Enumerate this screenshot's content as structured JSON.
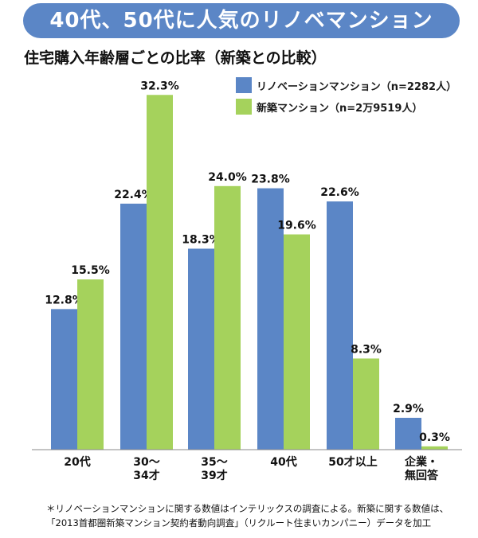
{
  "header": {
    "title": "40代、50代に人気のリノベマンション",
    "subtitle": "住宅購入年齢層ごとの比率（新築との比較）"
  },
  "legend": [
    {
      "label": "リノベーションマンション（n=2282人）",
      "color": "#5b86c6"
    },
    {
      "label": "新築マンション（n=2万9519人）",
      "color": "#a5d25c"
    }
  ],
  "footnote": {
    "line1": "＊リノベーションマンションに関する数値はインテリックスの調査による。新築に関する数値は、",
    "line2": "「2013首都圏新築マンション契約者動向調査」（リクルート住まいカンパニー）データを加工"
  },
  "chart_data": {
    "type": "bar",
    "title": "住宅購入年齢層ごとの比率（新築との比較）",
    "categories": [
      [
        "20代"
      ],
      [
        "30～",
        "34才"
      ],
      [
        "35～",
        "39才"
      ],
      [
        "40代"
      ],
      [
        "50才以上"
      ],
      [
        "企業・",
        "無回答"
      ]
    ],
    "series": [
      {
        "name": "リノベーションマンション（n=2282人）",
        "color": "#5b86c6",
        "values": [
          12.8,
          22.4,
          18.3,
          23.8,
          22.6,
          2.9
        ]
      },
      {
        "name": "新築マンション（n=2万9519人）",
        "color": "#a5d25c",
        "values": [
          15.5,
          32.3,
          24.0,
          19.6,
          8.3,
          0.3
        ]
      }
    ],
    "value_labels": [
      [
        "12.8%",
        "22.4%",
        "18.3%",
        "23.8%",
        "22.6%",
        "2.9%"
      ],
      [
        "15.5%",
        "32.3%",
        "24.0%",
        "19.6%",
        "8.3%",
        "0.3%"
      ]
    ],
    "ylim": [
      0,
      35
    ],
    "grid": false,
    "legend_position": "top-right"
  }
}
